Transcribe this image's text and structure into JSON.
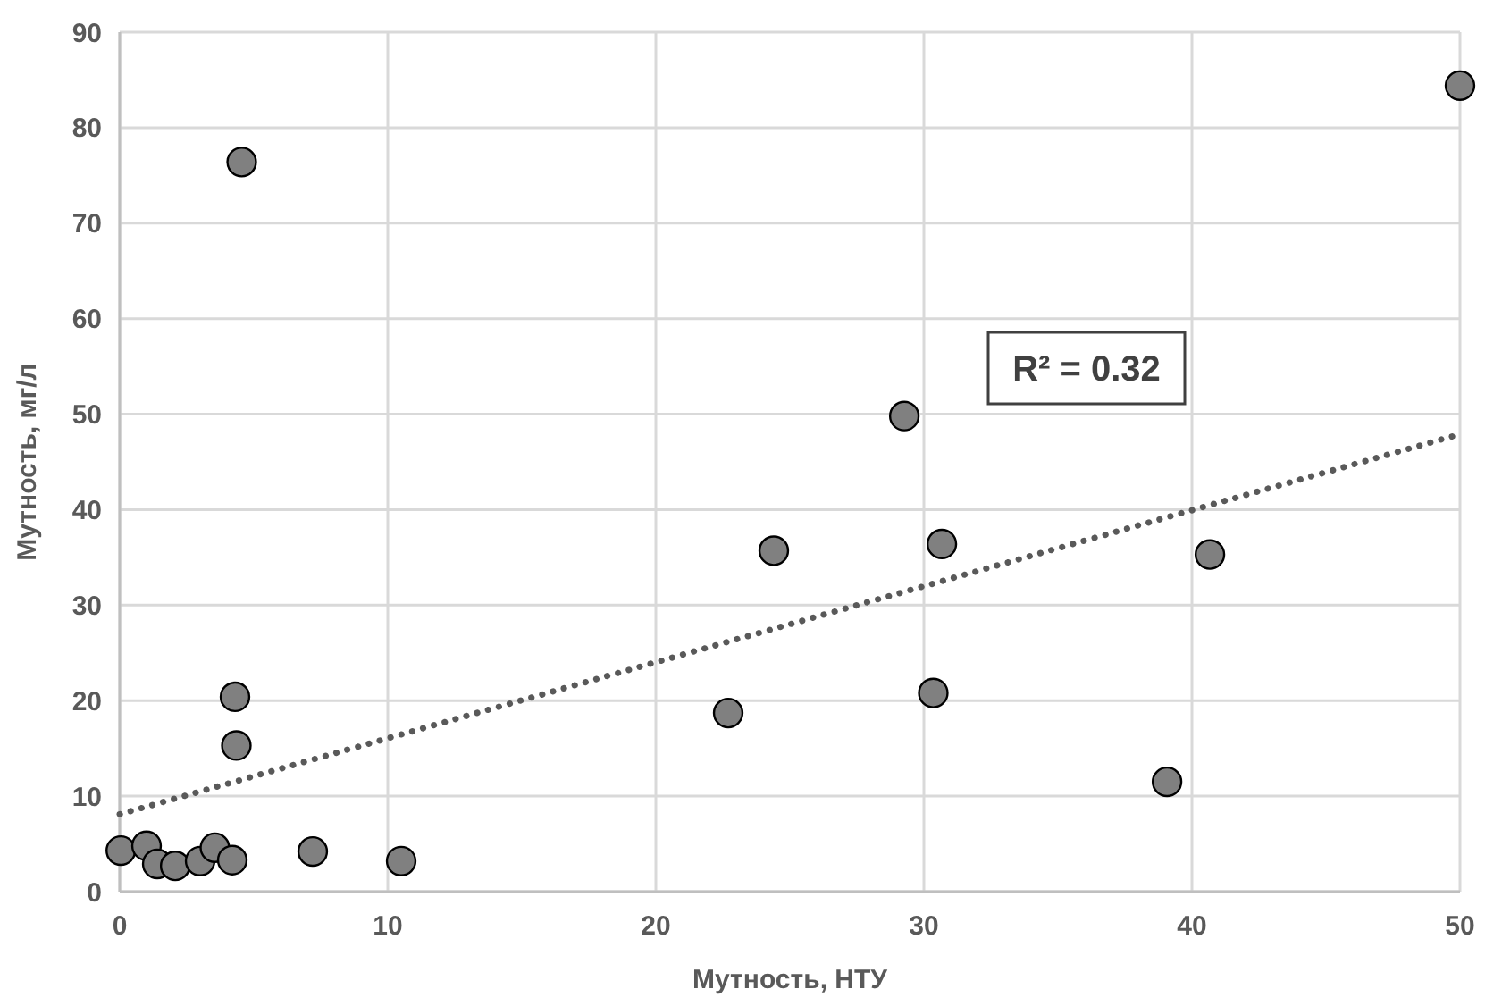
{
  "chart_data": {
    "type": "scatter",
    "xlabel": "Мутность, НТУ",
    "ylabel": "Мутность, мг/л",
    "xlim": [
      0,
      50
    ],
    "ylim": [
      0,
      90
    ],
    "xticks": [
      0,
      10,
      20,
      30,
      40,
      50
    ],
    "yticks": [
      0,
      10,
      20,
      30,
      40,
      50,
      60,
      70,
      80,
      90
    ],
    "grid": true,
    "annotations": [
      "R² = 0.32"
    ],
    "series": [
      {
        "color": "#808080",
        "marker": "circle",
        "x": [
          0.04,
          1.0,
          1.4,
          2.07,
          3.0,
          3.55,
          4.2,
          4.3,
          4.35,
          7.2,
          10.5,
          4.55,
          22.7,
          24.4,
          29.27,
          30.35,
          30.67,
          39.07,
          40.67,
          50
        ],
        "values": [
          4.3,
          4.8,
          2.9,
          2.7,
          3.2,
          4.6,
          3.3,
          20.4,
          15.3,
          4.2,
          3.2,
          76.4,
          18.7,
          35.7,
          49.8,
          20.8,
          36.4,
          11.5,
          35.3,
          84.4
        ]
      },
      {
        "type": "line",
        "color": "#595959",
        "line_style": "dotted",
        "marker": "none",
        "x": [
          0,
          50
        ],
        "values": [
          8.1,
          47.9
        ]
      }
    ]
  }
}
